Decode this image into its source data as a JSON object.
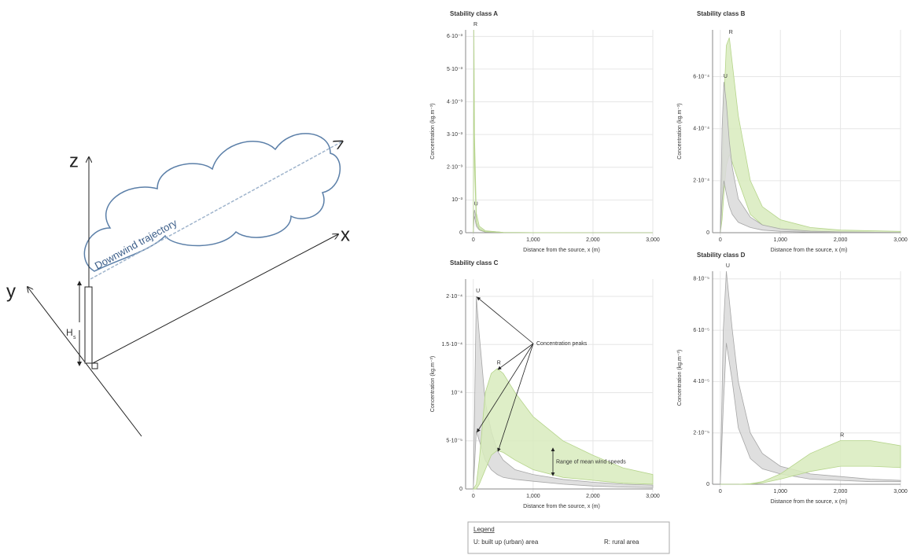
{
  "chart_data": [
    {
      "type": "area",
      "title": "Stability class A",
      "xlabel": "Distance from the source, x (m)",
      "ylabel": "Concentration (kg.m⁻³)",
      "x": [
        0,
        10,
        20,
        50,
        100,
        200,
        500,
        1000,
        2000,
        3000
      ],
      "series": [
        {
          "name": "U",
          "color": "#d9d9d9",
          "low": [
            0,
            0.0004,
            0.0005,
            0.0002,
            8e-05,
            2e-05,
            5e-06,
            1e-06,
            5e-07,
            2e-07
          ],
          "high": [
            0,
            0.0006,
            0.0007,
            0.0004,
            0.00015,
            5e-05,
            1e-05,
            3e-06,
            1e-06,
            5e-07
          ]
        },
        {
          "name": "R",
          "color": "#d8ebbd",
          "low": [
            0,
            0.0058,
            0.002,
            0.0003,
            0.0001,
            3e-05,
            5e-06,
            1e-06,
            5e-07,
            2e-07
          ],
          "high": [
            0,
            0.0062,
            0.003,
            0.0006,
            0.0002,
            6e-05,
            1e-05,
            3e-06,
            1e-06,
            5e-07
          ]
        }
      ],
      "xlim": [
        -50,
        3000
      ],
      "xticks": [
        0,
        {
          "value": 1000,
          "label": "1,000"
        },
        {
          "value": 2000,
          "label": "2,000"
        },
        {
          "value": 3000,
          "label": "3,000"
        }
      ],
      "ylim": [
        0,
        0.0062
      ],
      "yticks": [
        0,
        {
          "value": 0.001,
          "label": "10⁻³"
        },
        {
          "value": 0.002,
          "label": "2·10⁻³"
        },
        {
          "value": 0.003,
          "label": "3·10⁻³"
        },
        {
          "value": 0.004,
          "label": "4·10⁻³"
        },
        {
          "value": 0.005,
          "label": "5·10⁻³"
        },
        {
          "value": 0.006,
          "label": "6·10⁻³"
        }
      ],
      "grid": true
    },
    {
      "type": "area",
      "title": "Stability class B",
      "xlabel": "Distance from the source, x (m)",
      "ylabel": "Concentration (kg.m⁻³)",
      "x": [
        0,
        30,
        60,
        100,
        150,
        200,
        300,
        500,
        700,
        1000,
        1500,
        2000,
        3000
      ],
      "series": [
        {
          "name": "R",
          "color": "#d8ebbd",
          "low": [
            0,
            5e-05,
            0.00015,
            0.00026,
            0.0003,
            0.00027,
            0.0002,
            7e-05,
            3e-05,
            1.2e-05,
            5e-06,
            3e-06,
            1e-06
          ],
          "high": [
            0,
            0.0002,
            0.0005,
            0.00072,
            0.00075,
            0.00065,
            0.00045,
            0.0002,
            0.0001,
            5e-05,
            2e-05,
            1e-05,
            5e-06
          ]
        },
        {
          "name": "U",
          "color": "#d9d9d9",
          "low": [
            0,
            0.00012,
            0.0002,
            0.00015,
            0.0001,
            7e-05,
            4e-05,
            2e-05,
            1e-05,
            5e-06,
            2e-06,
            1e-06,
            5e-07
          ],
          "high": [
            0,
            0.0004,
            0.00058,
            0.0005,
            0.00035,
            0.00025,
            0.00013,
            6e-05,
            3e-05,
            1.5e-05,
            6e-06,
            3e-06,
            1e-06
          ]
        }
      ],
      "xlim": [
        -50,
        3000
      ],
      "xticks": [
        0,
        {
          "value": 1000,
          "label": "1,000"
        },
        {
          "value": 2000,
          "label": "2,000"
        },
        {
          "value": 3000,
          "label": "3,000"
        }
      ],
      "ylim": [
        0,
        0.00078
      ],
      "yticks": [
        0,
        {
          "value": 0.0002,
          "label": "2·10⁻⁴"
        },
        {
          "value": 0.0004,
          "label": "4·10⁻⁴"
        },
        {
          "value": 0.0006,
          "label": "6·10⁻⁴"
        }
      ],
      "grid": true
    },
    {
      "type": "area",
      "title": "Stability class C",
      "xlabel": "Distance from the source, x (m)",
      "ylabel": "Concentration (kg.m⁻³)",
      "annotations": [
        "Concentration peaks",
        "Range of mean wind speeds"
      ],
      "x": [
        0,
        50,
        100,
        200,
        300,
        400,
        500,
        700,
        1000,
        1500,
        2000,
        2500,
        3000
      ],
      "series": [
        {
          "name": "U",
          "color": "#d9d9d9",
          "low": [
            0,
            6e-05,
            5e-05,
            3e-05,
            2e-05,
            1.5e-05,
            1.2e-05,
            1e-05,
            8e-06,
            5e-06,
            3e-06,
            2e-06,
            1.5e-06
          ],
          "high": [
            0,
            0.0002,
            0.00016,
            9e-05,
            6e-05,
            4e-05,
            3e-05,
            2e-05,
            1.5e-05,
            1e-05,
            7e-06,
            5e-06,
            4e-06
          ]
        },
        {
          "name": "R",
          "color": "#d8ebbd",
          "low": [
            0,
            0,
            5e-06,
            2e-05,
            3.5e-05,
            4e-05,
            3.8e-05,
            3e-05,
            2e-05,
            1.2e-05,
            9e-06,
            6e-06,
            5e-06
          ],
          "high": [
            0,
            5e-06,
            3e-05,
            0.0001,
            0.00012,
            0.000125,
            0.00012,
            0.0001,
            7.5e-05,
            5e-05,
            3.5e-05,
            2.2e-05,
            1.5e-05
          ]
        }
      ],
      "xlim": [
        -50,
        3000
      ],
      "xticks": [
        0,
        {
          "value": 1000,
          "label": "1,000"
        },
        {
          "value": 2000,
          "label": "2,000"
        },
        {
          "value": 3000,
          "label": "3,000"
        }
      ],
      "ylim": [
        0,
        0.000218
      ],
      "yticks": [
        0,
        {
          "value": 5e-05,
          "label": "5·10⁻⁵"
        },
        {
          "value": 0.0001,
          "label": "10⁻⁴"
        },
        {
          "value": 0.00015,
          "label": "1.5·10⁻⁴"
        },
        {
          "value": 0.0002,
          "label": "2·10⁻⁴"
        }
      ],
      "grid": true
    },
    {
      "type": "area",
      "title": "Stability class D",
      "xlabel": "Distance from the source, x (m)",
      "ylabel": "Concentration (kg.m⁻³)",
      "x": [
        0,
        50,
        100,
        200,
        300,
        500,
        700,
        1000,
        1500,
        2000,
        2500,
        3000
      ],
      "series": [
        {
          "name": "U",
          "color": "#d9d9d9",
          "low": [
            0,
            3e-05,
            5.5e-05,
            4e-05,
            2.2e-05,
            1e-05,
            6e-06,
            4e-06,
            2e-06,
            1.5e-06,
            1e-06,
            1e-06
          ],
          "high": [
            0,
            6e-05,
            8.3e-05,
            6e-05,
            4e-05,
            2e-05,
            1.2e-05,
            7e-06,
            4e-06,
            3e-06,
            2e-06,
            1.5e-06
          ]
        },
        {
          "name": "R",
          "color": "#d8ebbd",
          "low": [
            0,
            0,
            0,
            0,
            0,
            0,
            5e-07,
            2e-06,
            5e-06,
            7e-06,
            7e-06,
            6.5e-06
          ],
          "high": [
            0,
            0,
            0,
            0,
            0,
            2e-07,
            1e-06,
            4e-06,
            1.2e-05,
            1.7e-05,
            1.7e-05,
            1.5e-05
          ]
        }
      ],
      "xlim": [
        -50,
        3000
      ],
      "xticks": [
        0,
        {
          "value": 1000,
          "label": "1,000"
        },
        {
          "value": 2000,
          "label": "2,000"
        },
        {
          "value": 3000,
          "label": "3,000"
        }
      ],
      "ylim": [
        0,
        8.3e-05
      ],
      "yticks": [
        0,
        {
          "value": 2e-05,
          "label": "2·10⁻⁵"
        },
        {
          "value": 4e-05,
          "label": "4·10⁻⁵"
        },
        {
          "value": 6e-05,
          "label": "6·10⁻⁵"
        },
        {
          "value": 8e-05,
          "label": "8·10⁻⁵"
        }
      ],
      "grid": true
    }
  ],
  "legend": {
    "title": "Legend",
    "items": [
      "U: built up (urban) area",
      "R: rural area"
    ]
  },
  "diagram": {
    "z_axis": "z",
    "x_axis": "x",
    "y_axis": "y",
    "stack_height": "H",
    "stack_height_subscript": "s",
    "trajectory": "Downwind trajectory"
  }
}
